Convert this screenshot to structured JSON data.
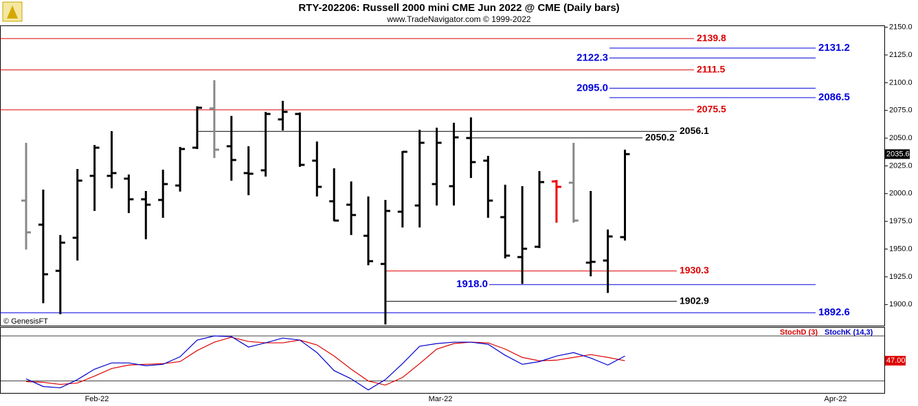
{
  "chart_data": [
    {
      "type": "ohlc",
      "title": "RTY-202206:  Russell 2000 mini CME Jun 2022 @ CME  (Daily bars)",
      "subtitle": "www.TradeNavigator.com © 1999-2022",
      "watermark": "© GenesisFT",
      "x_labels": [
        "Feb-22",
        "Mar-22",
        "Apr-22"
      ],
      "open": [
        1993.7,
        1972.0,
        1930.4,
        1960.2,
        2016.0,
        2016.0,
        2013.5,
        1994.9,
        1994.3,
        2007.3,
        2041.4,
        2076.8,
        2042.7,
        2018.5,
        2021.0,
        2066.9,
        2071.8,
        2029.7,
        1993.1,
        1990.0,
        1962.0,
        1936.6,
        1983.7,
        1989.3,
        2008.6,
        2006.7,
        2050.1,
        2029.7,
        1978.8,
        1942.8,
        1952.1,
        2011.0,
        2009.8,
        1937.8,
        1939.7,
        1960.8
      ],
      "high": [
        2045.8,
        2003.6,
        1962.7,
        2022.2,
        2043.9,
        2056.3,
        2017.2,
        2002.4,
        2021.6,
        2042.1,
        2078.7,
        2102.2,
        2070.0,
        2042.7,
        2073.7,
        2083.6,
        2073.1,
        2047.0,
        2022.8,
        2011.0,
        1997.4,
        1994.3,
        2038.3,
        2057.6,
        2059.4,
        2063.8,
        2068.7,
        2034.0,
        2008.0,
        2006.7,
        2020.3,
        2012.3,
        2045.8,
        2002.4,
        1967.6,
        2039.6
      ],
      "low": [
        1949.6,
        1901.2,
        1891.3,
        1939.7,
        1984.4,
        2004.8,
        1982.5,
        1958.9,
        1978.2,
        2001.8,
        2040.2,
        2032.1,
        2011.7,
        1998.6,
        2015.4,
        2056.9,
        2024.1,
        1997.4,
        1975.1,
        1962.7,
        1935.4,
        1882.0,
        1969.5,
        1969.5,
        1989.3,
        1989.3,
        2014.1,
        1978.2,
        1941.6,
        1918.6,
        1950.9,
        1973.8,
        1973.8,
        1925.4,
        1910.5,
        1957.7
      ],
      "close": [
        1965.1,
        1927.3,
        1955.8,
        2011.7,
        2041.4,
        2018.5,
        1994.9,
        1990.0,
        2008.6,
        2040.2,
        2077.4,
        2039.6,
        2030.3,
        2017.9,
        2071.8,
        2073.7,
        2025.9,
        2006.1,
        1975.7,
        1980.7,
        1939.1,
        1984.4,
        2037.7,
        2045.8,
        2045.8,
        2050.7,
        2028.4,
        1993.7,
        1944.1,
        1950.3,
        2010.4,
        2006.1,
        1975.7,
        1938.5,
        1961.4,
        2035.6
      ],
      "colors": [
        "#888888",
        "#000000",
        "#000000",
        "#000000",
        "#000000",
        "#000000",
        "#000000",
        "#000000",
        "#000000",
        "#000000",
        "#000000",
        "#888888",
        "#000000",
        "#000000",
        "#000000",
        "#000000",
        "#000000",
        "#000000",
        "#000000",
        "#000000",
        "#000000",
        "#000000",
        "#000000",
        "#000000",
        "#000000",
        "#000000",
        "#000000",
        "#000000",
        "#000000",
        "#000000",
        "#000000",
        "#ee0000",
        "#888888",
        "#000000",
        "#000000",
        "#000000"
      ],
      "last_price": 2035.6,
      "ylim": [
        1881,
        2151
      ],
      "yticks": [
        {
          "value": 1900,
          "label": "1900.0"
        },
        {
          "value": 1925,
          "label": "1925.0"
        },
        {
          "value": 1950,
          "label": "1950.0"
        },
        {
          "value": 1975,
          "label": "1975.0"
        },
        {
          "value": 2000,
          "label": "2000.0"
        },
        {
          "value": 2025,
          "label": "2025.0"
        },
        {
          "value": 2050,
          "label": "2050.0"
        },
        {
          "value": 2075,
          "label": "2075.0"
        },
        {
          "value": 2100,
          "label": "2100.0"
        },
        {
          "value": 2125,
          "label": "2125.0"
        },
        {
          "value": 2150,
          "label": "2150.0"
        }
      ],
      "levels": [
        {
          "value": 2139.8,
          "color": "#dd0000",
          "side": "right"
        },
        {
          "value": 2131.2,
          "color": "#0000dd",
          "side": "right"
        },
        {
          "value": 2122.3,
          "color": "#0000dd",
          "side": "left"
        },
        {
          "value": 2111.5,
          "color": "#dd0000",
          "side": "right"
        },
        {
          "value": 2095,
          "label": "2095.0",
          "color": "#0000dd",
          "side": "left"
        },
        {
          "value": 2086.5,
          "color": "#0000dd",
          "side": "right"
        },
        {
          "value": 2075.5,
          "color": "#dd0000",
          "side": "right"
        },
        {
          "value": 2056.1,
          "color": "#000000",
          "side": "right"
        },
        {
          "value": 2050.2,
          "color": "#000000",
          "side": "right"
        },
        {
          "value": 1930.3,
          "color": "#dd0000",
          "side": "right"
        },
        {
          "value": 1918,
          "label": "1918.0",
          "color": "#0000dd",
          "side": "left"
        },
        {
          "value": 1902.9,
          "color": "#000000",
          "side": "right"
        },
        {
          "value": 1892.6,
          "color": "#0000dd",
          "side": "right"
        }
      ]
    },
    {
      "type": "line",
      "ylim": [
        4,
        91
      ],
      "levels": [
        20,
        80
      ],
      "series": [
        {
          "name": "StochD (3)",
          "color": "#dd0000",
          "last_label": "47.00",
          "values": [
            19.1,
            18.2,
            15.4,
            17.2,
            26.5,
            36.6,
            41.2,
            42.2,
            43.1,
            45.8,
            60.6,
            71.7,
            78.2,
            72.6,
            70.8,
            70.8,
            74.5,
            68.0,
            53.2,
            35.7,
            20.0,
            14.5,
            24.6,
            43.1,
            62.5,
            69.8,
            71.7,
            70.8,
            62.5,
            51.4,
            46.8,
            47.7,
            51.4,
            55.1,
            51.4,
            47.0
          ]
        },
        {
          "name": "StochK (14,3)",
          "color": "#0000cc",
          "values": [
            22.8,
            12.6,
            10.8,
            21.8,
            35.7,
            44.0,
            44.0,
            40.3,
            42.2,
            52.3,
            74.5,
            80.0,
            79.1,
            65.2,
            70.8,
            77.2,
            74.5,
            57.8,
            33.8,
            22.8,
            8.0,
            21.8,
            43.1,
            66.2,
            69.8,
            71.7,
            71.7,
            68.9,
            54.2,
            42.2,
            45.8,
            53.2,
            57.8,
            50.5,
            41.2,
            53.2
          ]
        }
      ]
    }
  ]
}
